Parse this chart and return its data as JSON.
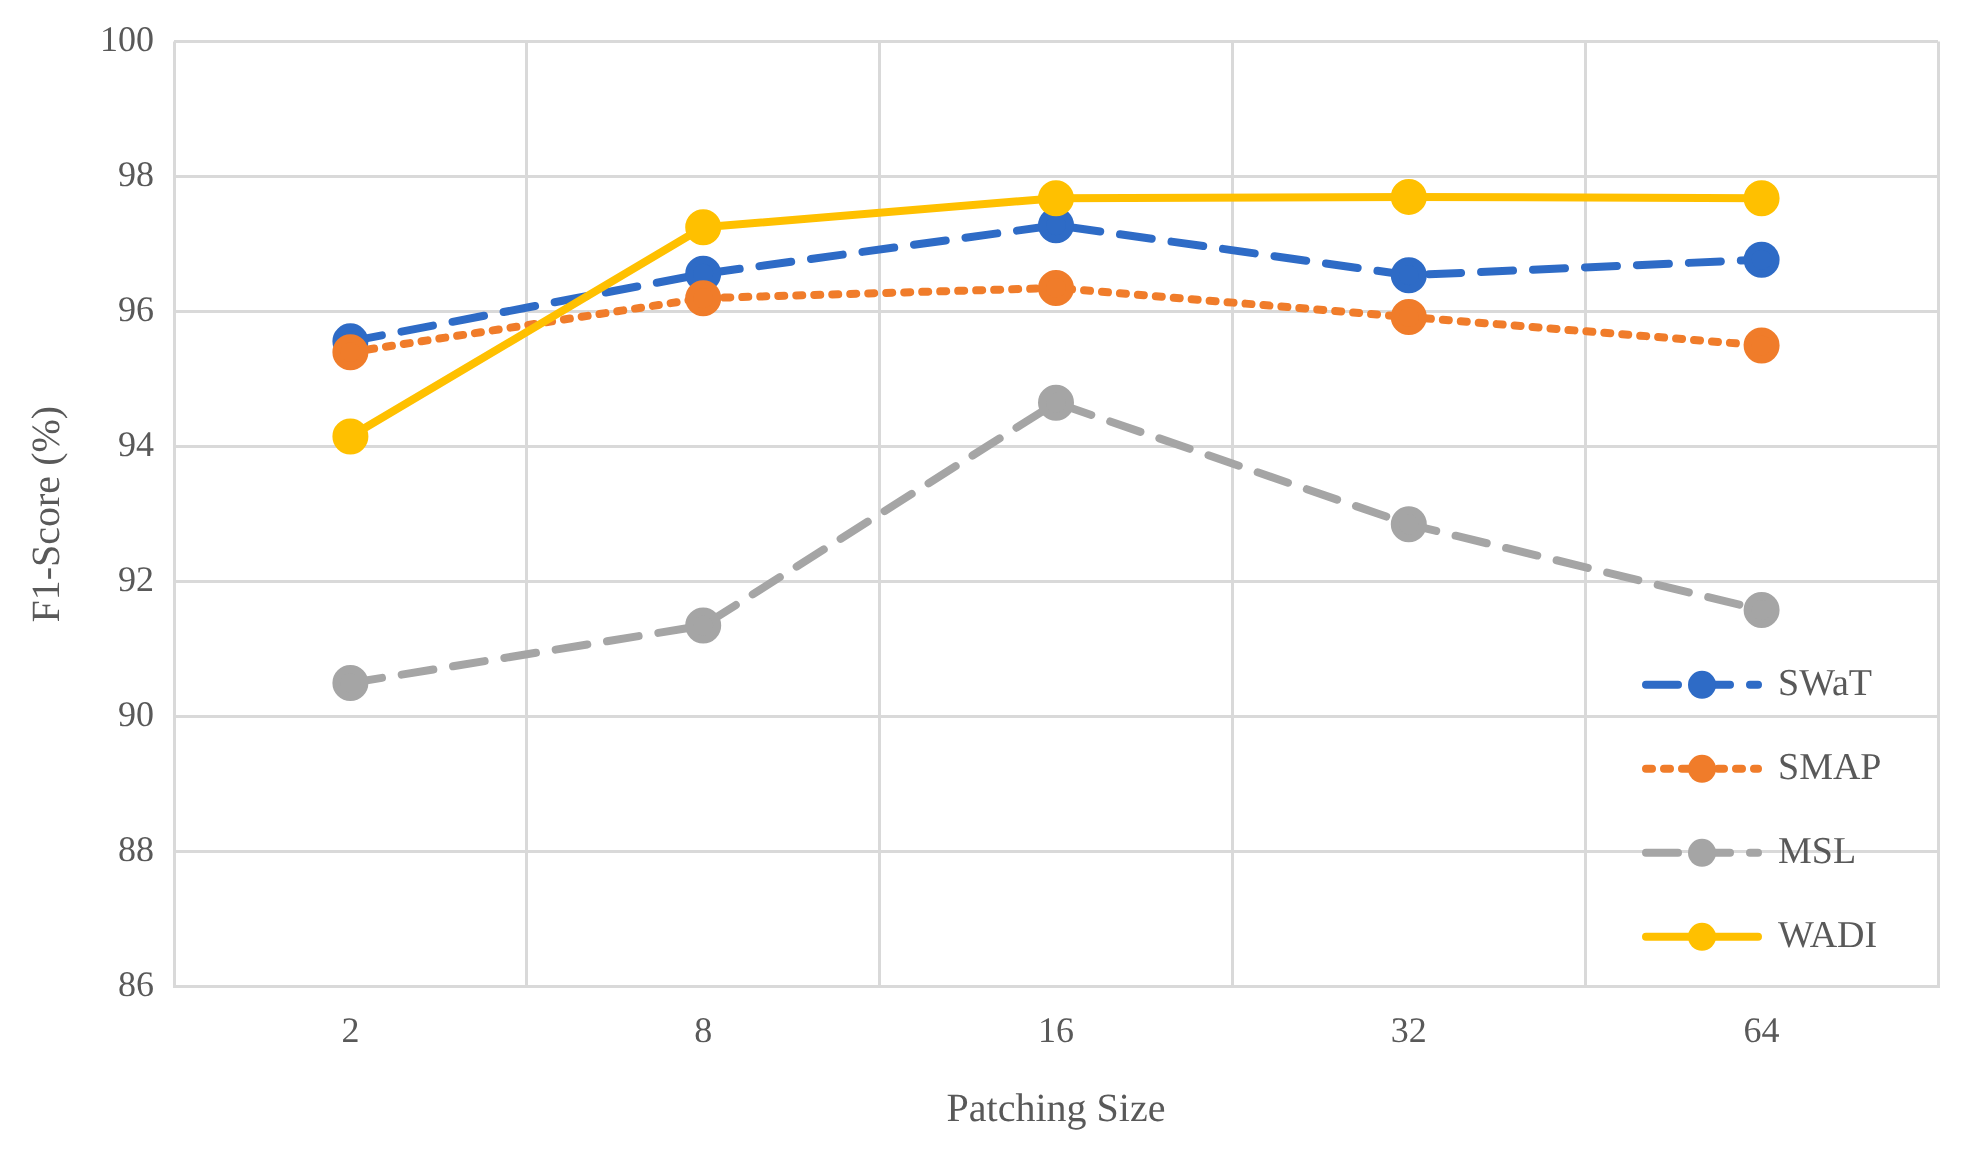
{
  "chart_data": {
    "type": "line",
    "xlabel": "Patching Size",
    "ylabel": "F1-Score (%)",
    "categories": [
      "2",
      "8",
      "16",
      "32",
      "64"
    ],
    "ylim": [
      86,
      100
    ],
    "yticks": [
      86,
      88,
      90,
      92,
      94,
      96,
      98,
      100
    ],
    "grid": true,
    "legend": "bottom right",
    "marker": "circle",
    "series": [
      {
        "name": "SWaT",
        "color": "#2e6bc6",
        "line_style": "dashed",
        "values": [
          95.56,
          96.56,
          97.28,
          96.54,
          96.77
        ]
      },
      {
        "name": "SMAP",
        "color": "#f07c2a",
        "line_style": "dotted",
        "values": [
          95.4,
          96.2,
          96.35,
          95.92,
          95.5
        ]
      },
      {
        "name": "MSL",
        "color": "#a5a5a5",
        "line_style": "dashed",
        "values": [
          90.5,
          91.35,
          94.65,
          92.85,
          91.58
        ]
      },
      {
        "name": "WADI",
        "color": "#ffc000",
        "line_style": "solid",
        "values": [
          94.15,
          97.25,
          97.68,
          97.7,
          97.68
        ]
      }
    ]
  }
}
